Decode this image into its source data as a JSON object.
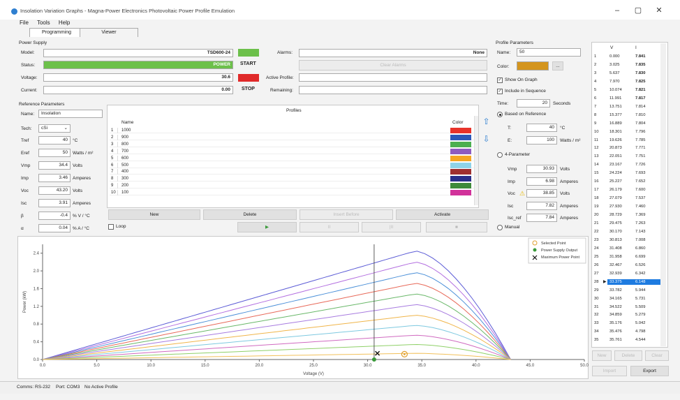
{
  "window": {
    "title": "Insolation Variation Graphs - Magna-Power Electronics Photovoltaic Power Profile Emulation",
    "controls": [
      "–",
      "▢",
      "✕"
    ]
  },
  "menu": [
    "File",
    "Tools",
    "Help"
  ],
  "tabs": [
    "Programming",
    "Viewer"
  ],
  "power_supply": {
    "section": "Power Supply",
    "model_label": "Model:",
    "model_value": "TSD600-24",
    "status_label": "Status:",
    "status_value": "POWER",
    "voltage_label": "Voltage:",
    "voltage_value": "30.6",
    "current_label": "Current:",
    "current_value": "0.00",
    "start_label": "START",
    "stop_label": "STOP",
    "alarms_label": "Alarms:",
    "alarms_value": "None",
    "clear_alarms": "Clear Alarms",
    "active_profile_label": "Active Profile:",
    "remaining_label": "Remaining:",
    "start_color": "#6cc04a",
    "stop_color": "#e02a2a",
    "status_color": "#6cc04a"
  },
  "reference": {
    "section": "Reference Parameters",
    "name_label": "Name:",
    "name_value": "Insolation",
    "tech_label": "Tech:",
    "tech_value": "cSi",
    "rows": [
      {
        "label": "Tref",
        "value": "40",
        "unit": "°C"
      },
      {
        "label": "Eref",
        "value": "50",
        "unit": "Watts / m²"
      },
      {
        "label": "Vmp",
        "value": "34.4",
        "unit": "Volts"
      },
      {
        "label": "Imp",
        "value": "3.46",
        "unit": "Amperes"
      },
      {
        "label": "Voc",
        "value": "43.20",
        "unit": "Volts"
      },
      {
        "label": "Isc",
        "value": "3.91",
        "unit": "Amperes"
      },
      {
        "label": "β",
        "value": "-0.4",
        "unit": "% V / °C"
      },
      {
        "label": "α",
        "value": "0.04",
        "unit": "% A / °C"
      }
    ]
  },
  "profiles": {
    "title": "Profiles",
    "col_name": "Name",
    "col_color": "Color",
    "rows": [
      {
        "n": "1",
        "name": "1000",
        "color": "#e8332a"
      },
      {
        "n": "2",
        "name": "900",
        "color": "#2c58b8"
      },
      {
        "n": "3",
        "name": "800",
        "color": "#4caf50"
      },
      {
        "n": "4",
        "name": "700",
        "color": "#8e5bbf"
      },
      {
        "n": "5",
        "name": "600",
        "color": "#f5a623"
      },
      {
        "n": "6",
        "name": "500",
        "color": "#8fd3e8"
      },
      {
        "n": "7",
        "name": "400",
        "color": "#a03030"
      },
      {
        "n": "8",
        "name": "300",
        "color": "#2a2f8a"
      },
      {
        "n": "9",
        "name": "200",
        "color": "#3e8a3a"
      },
      {
        "n": "10",
        "name": "100",
        "color": "#d1329a"
      }
    ],
    "buttons": [
      "New",
      "Delete",
      "Insert Before",
      "Activate"
    ],
    "loop_label": "Loop",
    "play_label": "▶",
    "pause_label": "II",
    "stepback_label": "|II",
    "stop_label": "■"
  },
  "profile_params": {
    "section": "Profile Parameters",
    "name_label": "Name:",
    "name_value": "50",
    "color_label": "Color:",
    "color_value": "#d4951e",
    "color_browse": "...",
    "show_on_graph": "Show On Graph",
    "include_sequence": "Include in Sequence",
    "time_label": "Time:",
    "time_value": "20",
    "time_unit": "Seconds",
    "based_on_reference": "Based on Reference",
    "t_label": "T:",
    "t_value": "40",
    "t_unit": "°C",
    "e_label": "E:",
    "e_value": "100",
    "e_unit": "Watts / m²",
    "four_param": "4-Parameter",
    "fp_rows": [
      {
        "label": "Vmp",
        "value": "30.93",
        "unit": "Volts",
        "warn": false
      },
      {
        "label": "Imp",
        "value": "6.98",
        "unit": "Amperes",
        "warn": false
      },
      {
        "label": "Voc",
        "value": "38.85",
        "unit": "Volts",
        "warn": true
      },
      {
        "label": "Isc",
        "value": "7.82",
        "unit": "Amperes",
        "warn": false
      },
      {
        "label": "Isc_ref",
        "value": "7.84",
        "unit": "Amperes",
        "warn": false
      }
    ],
    "manual": "Manual"
  },
  "vi_table": {
    "col_v": "V",
    "col_i": "I",
    "rows": [
      [
        "1",
        "0.000",
        "7.841"
      ],
      [
        "2",
        "3.025",
        "7.835"
      ],
      [
        "3",
        "5.637",
        "7.830"
      ],
      [
        "4",
        "7.970",
        "7.825"
      ],
      [
        "5",
        "10.074",
        "7.821"
      ],
      [
        "6",
        "11.991",
        "7.817"
      ],
      [
        "7",
        "13.751",
        "7.814"
      ],
      [
        "8",
        "15.377",
        "7.810"
      ],
      [
        "9",
        "16.889",
        "7.804"
      ],
      [
        "10",
        "18.301",
        "7.796"
      ],
      [
        "11",
        "19.626",
        "7.785"
      ],
      [
        "12",
        "20.873",
        "7.771"
      ],
      [
        "13",
        "22.051",
        "7.751"
      ],
      [
        "14",
        "23.167",
        "7.726"
      ],
      [
        "15",
        "24.224",
        "7.693"
      ],
      [
        "16",
        "25.227",
        "7.652"
      ],
      [
        "17",
        "26.179",
        "7.600"
      ],
      [
        "18",
        "27.079",
        "7.537"
      ],
      [
        "19",
        "27.930",
        "7.460"
      ],
      [
        "20",
        "28.729",
        "7.369"
      ],
      [
        "21",
        "29.475",
        "7.263"
      ],
      [
        "22",
        "30.170",
        "7.143"
      ],
      [
        "23",
        "30.813",
        "7.008"
      ],
      [
        "24",
        "31.408",
        "6.860"
      ],
      [
        "25",
        "31.958",
        "6.699"
      ],
      [
        "26",
        "32.467",
        "6.526"
      ],
      [
        "27",
        "32.939",
        "6.342"
      ],
      [
        "28",
        "33.375",
        "6.148"
      ],
      [
        "29",
        "33.782",
        "5.944"
      ],
      [
        "30",
        "34.165",
        "5.731"
      ],
      [
        "31",
        "34.522",
        "5.509"
      ],
      [
        "32",
        "34.859",
        "5.279"
      ],
      [
        "33",
        "35.176",
        "5.042"
      ],
      [
        "34",
        "35.476",
        "4.798"
      ],
      [
        "35",
        "35.761",
        "4.544"
      ]
    ],
    "bold_rows": 6,
    "selected_row": 27,
    "buttons": [
      "New",
      "Delete",
      "Clear",
      "Import",
      "Export"
    ]
  },
  "chart_data": {
    "type": "line",
    "xlabel": "Voltage (V)",
    "ylabel": "Power (kW)",
    "xlim": [
      0,
      50
    ],
    "ylim": [
      0,
      2.6
    ],
    "xticks": [
      "0.0",
      "5.0",
      "10.0",
      "15.0",
      "20.0",
      "25.0",
      "30.0",
      "35.0",
      "40.0",
      "45.0",
      "50.0"
    ],
    "yticks": [
      "0.0",
      "0.4",
      "0.8",
      "1.2",
      "1.6",
      "2.0",
      "2.4"
    ],
    "series": [
      {
        "color": "#5b5bd6",
        "peak": 2.45
      },
      {
        "color": "#b36fe0",
        "peak": 2.2
      },
      {
        "color": "#4a8fd8",
        "peak": 1.96
      },
      {
        "color": "#e86a5a",
        "peak": 1.72
      },
      {
        "color": "#6ab86a",
        "peak": 1.48
      },
      {
        "color": "#a87ce0",
        "peak": 1.24
      },
      {
        "color": "#f0b54a",
        "peak": 1.0
      },
      {
        "color": "#7ec9e0",
        "peak": 0.77
      },
      {
        "color": "#d06ac0",
        "peak": 0.55
      },
      {
        "color": "#8fd068",
        "peak": 0.34
      },
      {
        "color": "#f2c05a",
        "peak": 0.14
      }
    ],
    "vmp": 34.4,
    "voc": 43.2,
    "cursor_v": 30.6,
    "selected_point": [
      33.4,
      0.12
    ],
    "power_supply_output": [
      30.6,
      0.0
    ],
    "maximum_power_point": [
      30.9,
      0.14
    ],
    "legend": [
      "Selected Point",
      "Power Supply Output",
      "Maximum Power Point"
    ]
  },
  "statusbar": {
    "comms": "Comms: RS-232",
    "port": "Port: COM3",
    "profile": "No Active Profile"
  }
}
